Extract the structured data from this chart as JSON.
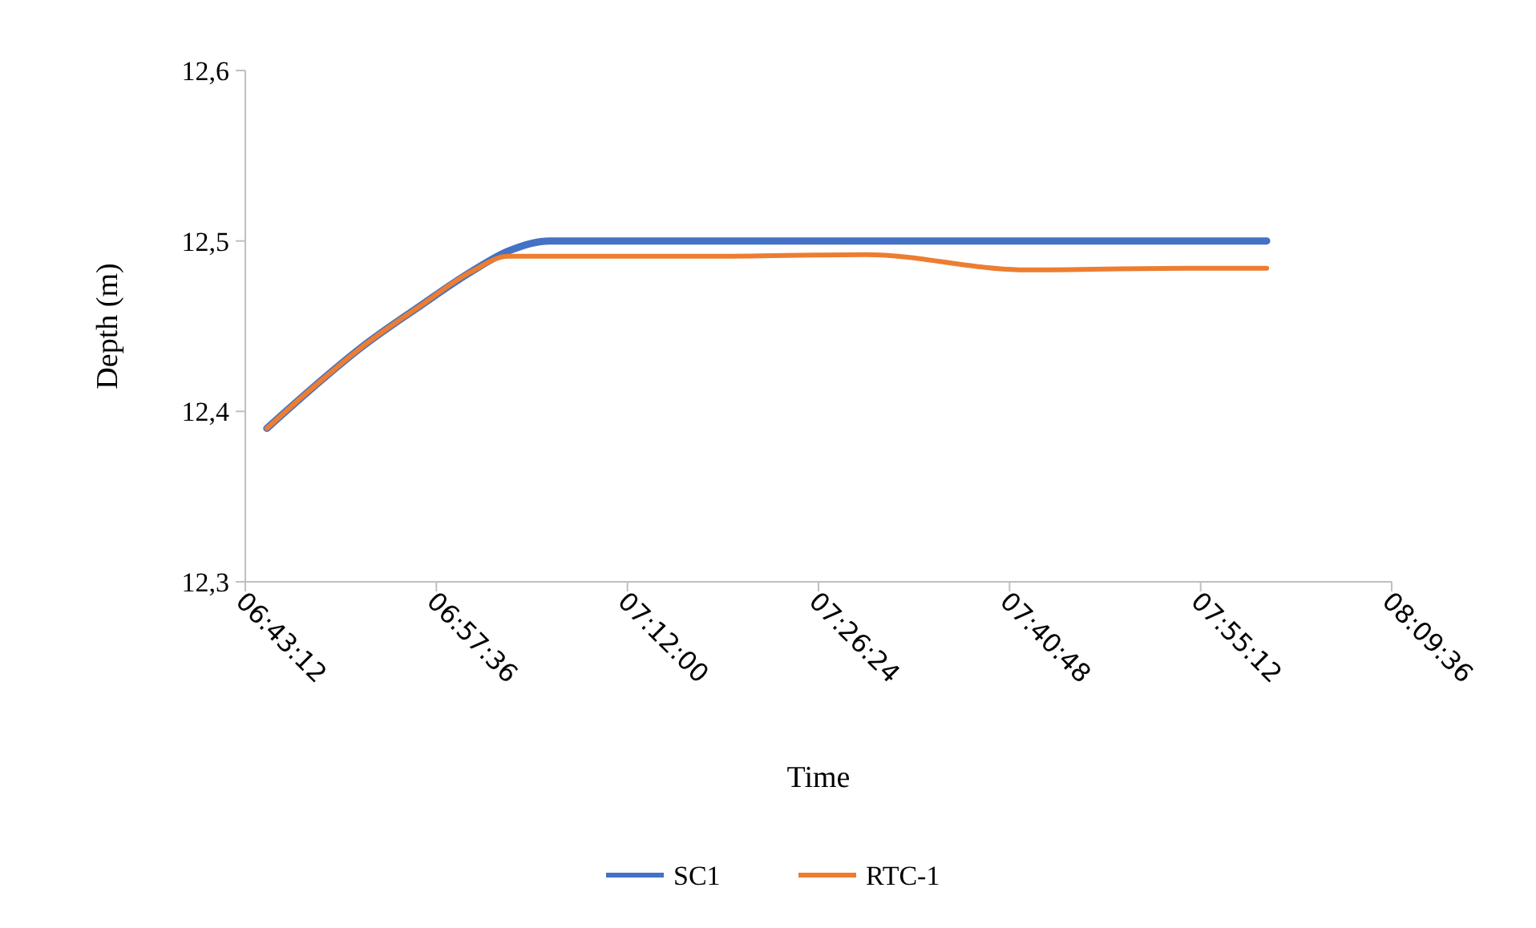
{
  "chart_data": {
    "type": "line",
    "xlabel": "Time",
    "ylabel": "Depth (m)",
    "x": [
      6.747,
      6.8,
      6.867,
      6.94,
      7.004,
      7.05,
      7.102,
      7.15,
      7.3,
      7.5,
      7.7,
      7.9,
      8.003
    ],
    "series": [
      {
        "name": "SC1",
        "color": "#4472c4",
        "values": [
          12.39,
          12.412,
          12.438,
          12.462,
          12.482,
          12.494,
          12.5,
          12.5,
          12.5,
          12.5,
          12.5,
          12.5,
          12.5
        ]
      },
      {
        "name": "RTC-1",
        "color": "#ed7d31",
        "values": [
          12.39,
          12.412,
          12.438,
          12.462,
          12.482,
          12.491,
          12.491,
          12.491,
          12.491,
          12.492,
          12.483,
          12.484,
          12.484
        ]
      }
    ],
    "xlim": [
      6.72,
      8.16
    ],
    "xticks": [
      {
        "value": 6.72,
        "label": "06:43:12"
      },
      {
        "value": 6.96,
        "label": "06:57:36"
      },
      {
        "value": 7.2,
        "label": "07:12:00"
      },
      {
        "value": 7.44,
        "label": "07:26:24"
      },
      {
        "value": 7.68,
        "label": "07:40:48"
      },
      {
        "value": 7.92,
        "label": "07:55:12"
      },
      {
        "value": 8.16,
        "label": "08:09:36"
      }
    ],
    "ylim": [
      12.3,
      12.6
    ],
    "yticks": [
      {
        "value": 12.3,
        "label": "12,3"
      },
      {
        "value": 12.4,
        "label": "12,4"
      },
      {
        "value": 12.5,
        "label": "12,5"
      },
      {
        "value": 12.6,
        "label": "12,6"
      }
    ],
    "grid": false,
    "legend": "bottom",
    "marker": "none",
    "line_style": "solid"
  }
}
